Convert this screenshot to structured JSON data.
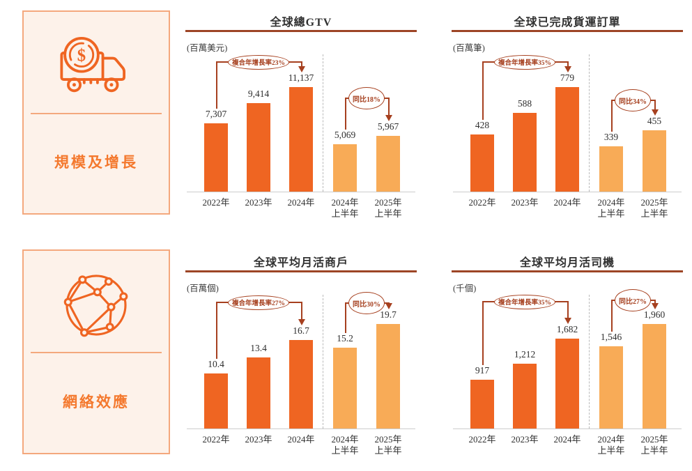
{
  "colors": {
    "bar_annual": "#ef6522",
    "bar_half": "#f8ab57",
    "annotation": "#a6401f",
    "title_rule": "#9d4526",
    "card_border": "#f4a87d",
    "card_bg": "#fdf2ea",
    "card_text": "#f4792e",
    "axis_line": "#cccccc",
    "divider_dash": "#b9b9b9",
    "text": "#2f2f2f"
  },
  "sidebar_cards": [
    {
      "label": "規模及增長",
      "icon": "money-truck-icon"
    },
    {
      "label": "網絡效應",
      "icon": "network-globe-icon"
    }
  ],
  "chart_data": [
    {
      "type": "bar",
      "title": "全球總GTV",
      "unit": "(百萬美元)",
      "categories": [
        "2022年",
        "2023年",
        "2024年",
        "2024年\n上半年",
        "2025年\n上半年"
      ],
      "values": [
        7307,
        9414,
        11137,
        5069,
        5967
      ],
      "value_labels": [
        "7,307",
        "9,414",
        "11,137",
        "5,069",
        "5,967"
      ],
      "annotations": {
        "cagr": "複合年增長率23%",
        "yoy": "同比18%"
      },
      "half_year_start_index": 3,
      "divider_after_index": 2,
      "gridlines": false,
      "legend": "none"
    },
    {
      "type": "bar",
      "title": "全球已完成貨運訂單",
      "unit": "(百萬筆)",
      "categories": [
        "2022年",
        "2023年",
        "2024年",
        "2024年\n上半年",
        "2025年\n上半年"
      ],
      "values": [
        428,
        588,
        779,
        339,
        455
      ],
      "value_labels": [
        "428",
        "588",
        "779",
        "339",
        "455"
      ],
      "annotations": {
        "cagr": "複合年增長率35%",
        "yoy": "同比34%"
      },
      "half_year_start_index": 3,
      "divider_after_index": 2,
      "gridlines": false,
      "legend": "none"
    },
    {
      "type": "bar",
      "title": "全球平均月活商戶",
      "unit": "(百萬個)",
      "categories": [
        "2022年",
        "2023年",
        "2024年",
        "2024年\n上半年",
        "2025年\n上半年"
      ],
      "values": [
        10.4,
        13.4,
        16.7,
        15.2,
        19.7
      ],
      "value_labels": [
        "10.4",
        "13.4",
        "16.7",
        "15.2",
        "19.7"
      ],
      "annotations": {
        "cagr": "複合年增長率27%",
        "yoy": "同比30%"
      },
      "half_year_start_index": 3,
      "divider_after_index": 2,
      "gridlines": false,
      "legend": "none"
    },
    {
      "type": "bar",
      "title": "全球平均月活司機",
      "unit": "(千個)",
      "categories": [
        "2022年",
        "2023年",
        "2024年",
        "2024年\n上半年",
        "2025年\n上半年"
      ],
      "values": [
        917,
        1212,
        1682,
        1546,
        1960
      ],
      "value_labels": [
        "917",
        "1,212",
        "1,682",
        "1,546",
        "1,960"
      ],
      "annotations": {
        "cagr": "複合年增長率35%",
        "yoy": "同比27%"
      },
      "half_year_start_index": 3,
      "divider_after_index": 2,
      "gridlines": false,
      "legend": "none"
    }
  ]
}
